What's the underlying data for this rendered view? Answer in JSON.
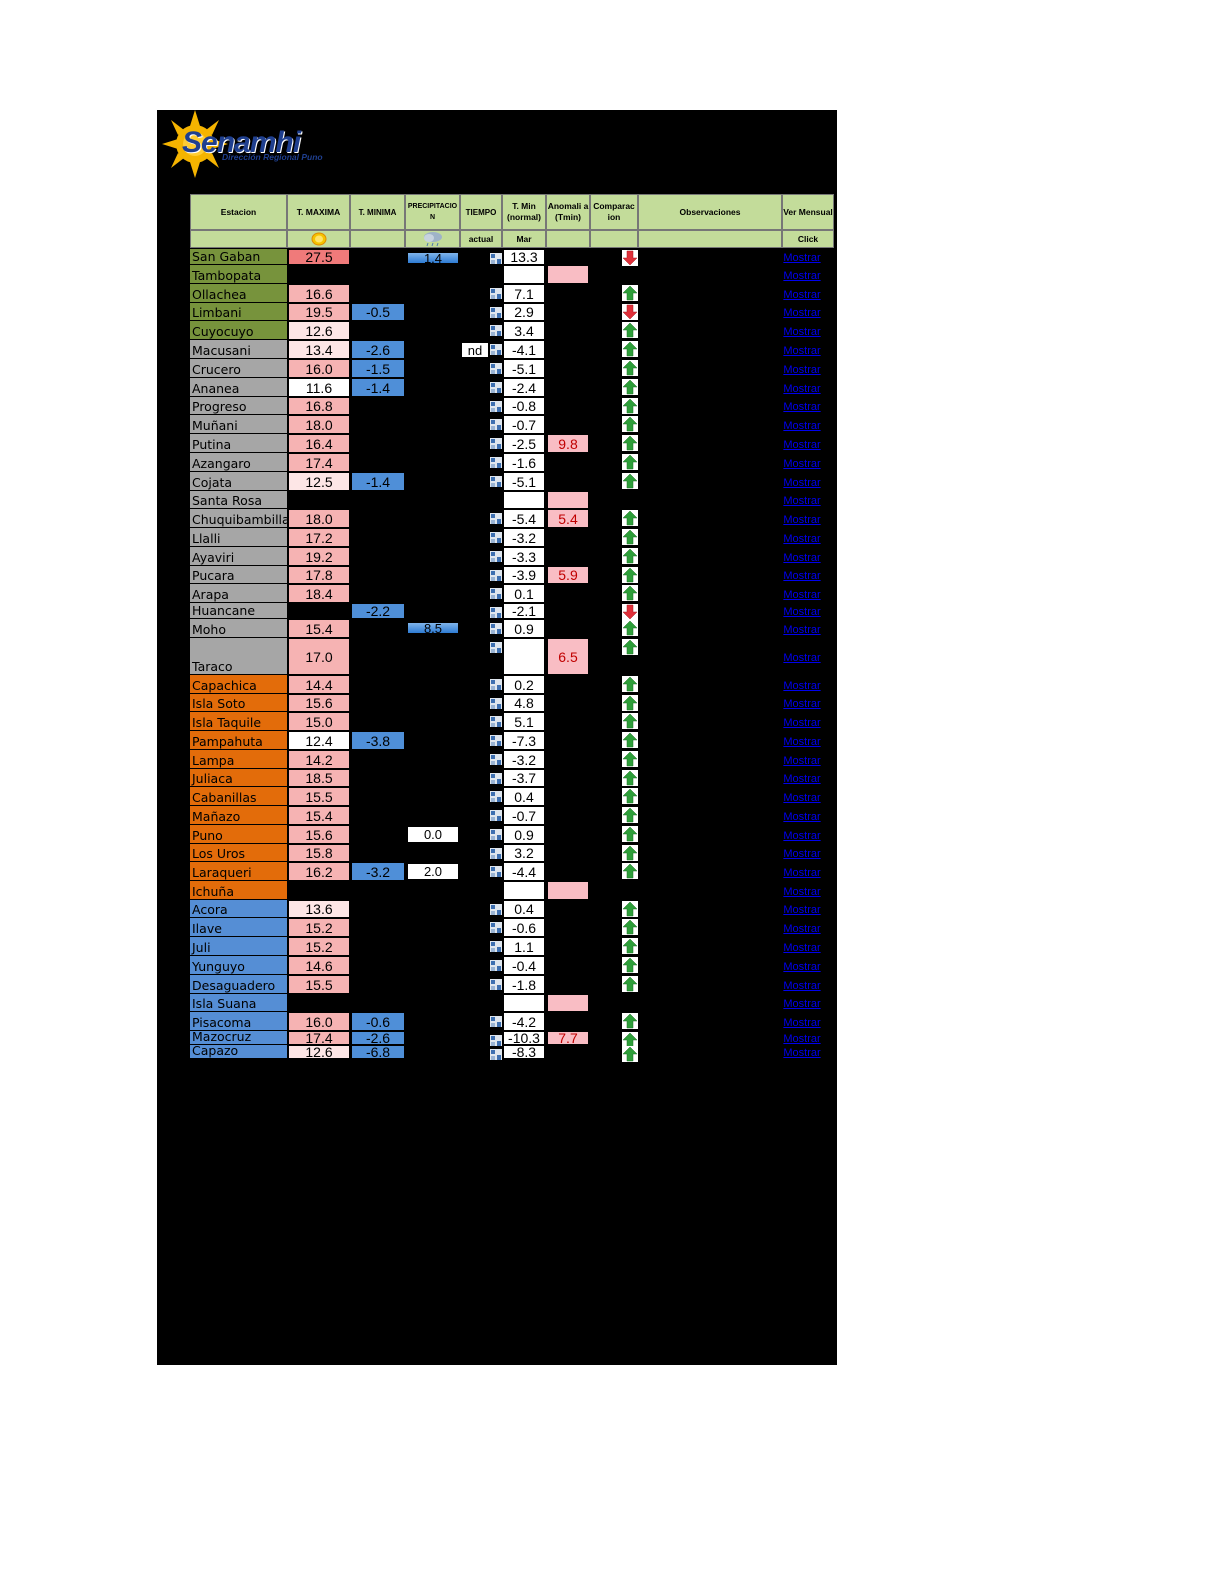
{
  "logo": {
    "name": "Senamhi",
    "subtitle": "Dirección Regional Puno"
  },
  "headers": {
    "station": "Estacion",
    "tmax": "T. MAXIMA",
    "tmin": "T. MINIMA",
    "precip": "PRECIPITACIO N",
    "weather": "TIEMPO",
    "tmin_normal": "T. Min (normal)",
    "anomaly": "Anomali a (Tmin)",
    "comparison": "Comparac ion",
    "observations": "Observaciones",
    "monthly": "Ver Mensual"
  },
  "subheaders": {
    "weather": "actual",
    "tmin_normal": "Mar",
    "monthly": "Click"
  },
  "link_text": "Mostrar",
  "icons": {
    "tmax": "sun-icon",
    "precip": "rain-cloud-icon",
    "weather": "weather-symbol-icon",
    "up": "green-up-arrow-icon",
    "down": "red-down-arrow-icon"
  },
  "colors": {
    "green_region": "#77933c",
    "gray_region": "#a6a6a6",
    "orange_region": "#e36c0a",
    "blue_region": "#558ed5",
    "header_bg": "#c3dc9a"
  },
  "rows": [
    {
      "station": "San Gaban",
      "region": "green",
      "tmax": "27.5",
      "tmin": "",
      "precip": "1.4",
      "weather": "",
      "normal": "13.3",
      "anomaly": "",
      "cmp": "down"
    },
    {
      "station": "Tambopata",
      "region": "green",
      "tmax": "",
      "tmin": "",
      "precip": "",
      "weather": "",
      "normal": "",
      "anomaly": "",
      "cmp": ""
    },
    {
      "station": "Ollachea",
      "region": "green",
      "tmax": "16.6",
      "tmin": "",
      "precip": "",
      "weather": "",
      "normal": "7.1",
      "anomaly": "",
      "cmp": "up"
    },
    {
      "station": "Limbani",
      "region": "green",
      "tmax": "19.5",
      "tmin": "-0.5",
      "precip": "",
      "weather": "",
      "normal": "2.9",
      "anomaly": "",
      "cmp": "down"
    },
    {
      "station": "Cuyocuyo",
      "region": "green",
      "tmax": "12.6",
      "tmin": "",
      "precip": "",
      "weather": "",
      "normal": "3.4",
      "anomaly": "",
      "cmp": "up"
    },
    {
      "station": "Macusani",
      "region": "gray",
      "tmax": "13.4",
      "tmin": "-2.6",
      "precip": "",
      "weather": "nd",
      "normal": "-4.1",
      "anomaly": "",
      "cmp": "up"
    },
    {
      "station": "Crucero",
      "region": "gray",
      "tmax": "16.0",
      "tmin": "-1.5",
      "precip": "",
      "weather": "",
      "normal": "-5.1",
      "anomaly": "",
      "cmp": "up"
    },
    {
      "station": "Ananea",
      "region": "gray",
      "tmax": "11.6",
      "tmin": "-1.4",
      "precip": "",
      "weather": "",
      "normal": "-2.4",
      "anomaly": "",
      "cmp": "up"
    },
    {
      "station": "Progreso",
      "region": "gray",
      "tmax": "16.8",
      "tmin": "",
      "precip": "",
      "weather": "",
      "normal": "-0.8",
      "anomaly": "",
      "cmp": "up"
    },
    {
      "station": "Muñani",
      "region": "gray",
      "tmax": "18.0",
      "tmin": "",
      "precip": "",
      "weather": "",
      "normal": "-0.7",
      "anomaly": "",
      "cmp": "up"
    },
    {
      "station": "Putina",
      "region": "gray",
      "tmax": "16.4",
      "tmin": "",
      "precip": "",
      "weather": "",
      "normal": "-2.5",
      "anomaly": "9.8",
      "cmp": "up"
    },
    {
      "station": "Azangaro",
      "region": "gray",
      "tmax": "17.4",
      "tmin": "",
      "precip": "",
      "weather": "",
      "normal": "-1.6",
      "anomaly": "",
      "cmp": "up"
    },
    {
      "station": "Cojata",
      "region": "gray",
      "tmax": "12.5",
      "tmin": "-1.4",
      "precip": "",
      "weather": "",
      "normal": "-5.1",
      "anomaly": "",
      "cmp": "up"
    },
    {
      "station": "Santa Rosa",
      "region": "gray",
      "tmax": "",
      "tmin": "",
      "precip": "",
      "weather": "",
      "normal": "",
      "anomaly": "",
      "cmp": ""
    },
    {
      "station": "Chuquibambilla",
      "region": "gray",
      "tmax": "18.0",
      "tmin": "",
      "precip": "",
      "weather": "",
      "normal": "-5.4",
      "anomaly": "5.4",
      "cmp": "up"
    },
    {
      "station": "Llalli",
      "region": "gray",
      "tmax": "17.2",
      "tmin": "",
      "precip": "",
      "weather": "",
      "normal": "-3.2",
      "anomaly": "",
      "cmp": "up"
    },
    {
      "station": "Ayaviri",
      "region": "gray",
      "tmax": "19.2",
      "tmin": "",
      "precip": "",
      "weather": "",
      "normal": "-3.3",
      "anomaly": "",
      "cmp": "up"
    },
    {
      "station": "Pucara",
      "region": "gray",
      "tmax": "17.8",
      "tmin": "",
      "precip": "",
      "weather": "",
      "normal": "-3.9",
      "anomaly": "5.9",
      "cmp": "up"
    },
    {
      "station": "Arapa",
      "region": "gray",
      "tmax": "18.4",
      "tmin": "",
      "precip": "",
      "weather": "",
      "normal": "0.1",
      "anomaly": "",
      "cmp": "up"
    },
    {
      "station": "Huancane",
      "region": "gray",
      "tmax": "",
      "tmin": "-2.2",
      "precip": "",
      "weather": "",
      "normal": "-2.1",
      "anomaly": "",
      "cmp": "down"
    },
    {
      "station": "Moho",
      "region": "gray",
      "tmax": "15.4",
      "tmin": "",
      "precip": "8.5",
      "weather": "",
      "normal": "0.9",
      "anomaly": "",
      "cmp": "up"
    },
    {
      "station": "Taraco",
      "region": "gray",
      "tmax": "17.0",
      "tmin": "",
      "precip": "",
      "weather": "",
      "normal": "",
      "anomaly": "6.5",
      "cmp": "up"
    },
    {
      "station": "Capachica",
      "region": "orange",
      "tmax": "14.4",
      "tmin": "",
      "precip": "",
      "weather": "",
      "normal": "0.2",
      "anomaly": "",
      "cmp": "up"
    },
    {
      "station": "Isla Soto",
      "region": "orange",
      "tmax": "15.6",
      "tmin": "",
      "precip": "",
      "weather": "",
      "normal": "4.8",
      "anomaly": "",
      "cmp": "up"
    },
    {
      "station": "Isla Taquile",
      "region": "orange",
      "tmax": "15.0",
      "tmin": "",
      "precip": "",
      "weather": "",
      "normal": "5.1",
      "anomaly": "",
      "cmp": "up"
    },
    {
      "station": "Pampahuta",
      "region": "orange",
      "tmax": "12.4",
      "tmin": "-3.8",
      "precip": "",
      "weather": "",
      "normal": "-7.3",
      "anomaly": "",
      "cmp": "up"
    },
    {
      "station": "Lampa",
      "region": "orange",
      "tmax": "14.2",
      "tmin": "",
      "precip": "",
      "weather": "",
      "normal": "-3.2",
      "anomaly": "",
      "cmp": "up"
    },
    {
      "station": "Juliaca",
      "region": "orange",
      "tmax": "18.5",
      "tmin": "",
      "precip": "",
      "weather": "",
      "normal": "-3.7",
      "anomaly": "",
      "cmp": "up"
    },
    {
      "station": "Cabanillas",
      "region": "orange",
      "tmax": "15.5",
      "tmin": "",
      "precip": "",
      "weather": "",
      "normal": "0.4",
      "anomaly": "",
      "cmp": "up"
    },
    {
      "station": "Mañazo",
      "region": "orange",
      "tmax": "15.4",
      "tmin": "",
      "precip": "",
      "weather": "",
      "normal": "-0.7",
      "anomaly": "",
      "cmp": "up"
    },
    {
      "station": "Puno",
      "region": "orange",
      "tmax": "15.6",
      "tmin": "",
      "precip": "0.0",
      "weather": "",
      "normal": "0.9",
      "anomaly": "",
      "cmp": "up"
    },
    {
      "station": "Los Uros",
      "region": "orange",
      "tmax": "15.8",
      "tmin": "",
      "precip": "",
      "weather": "",
      "normal": "3.2",
      "anomaly": "",
      "cmp": "up"
    },
    {
      "station": "Laraqueri",
      "region": "orange",
      "tmax": "16.2",
      "tmin": "-3.2",
      "precip": "2.0",
      "weather": "",
      "normal": "-4.4",
      "anomaly": "",
      "cmp": "up"
    },
    {
      "station": "Ichuña",
      "region": "orange",
      "tmax": "",
      "tmin": "",
      "precip": "",
      "weather": "",
      "normal": "",
      "anomaly": "",
      "cmp": ""
    },
    {
      "station": "Acora",
      "region": "blue",
      "tmax": "13.6",
      "tmin": "",
      "precip": "",
      "weather": "",
      "normal": "0.4",
      "anomaly": "",
      "cmp": "up"
    },
    {
      "station": "Ilave",
      "region": "blue",
      "tmax": "15.2",
      "tmin": "",
      "precip": "",
      "weather": "",
      "normal": "-0.6",
      "anomaly": "",
      "cmp": "up"
    },
    {
      "station": "Juli",
      "region": "blue",
      "tmax": "15.2",
      "tmin": "",
      "precip": "",
      "weather": "",
      "normal": "1.1",
      "anomaly": "",
      "cmp": "up"
    },
    {
      "station": "Yunguyo",
      "region": "blue",
      "tmax": "14.6",
      "tmin": "",
      "precip": "",
      "weather": "",
      "normal": "-0.4",
      "anomaly": "",
      "cmp": "up"
    },
    {
      "station": "Desaguadero",
      "region": "blue",
      "tmax": "15.5",
      "tmin": "",
      "precip": "",
      "weather": "",
      "normal": "-1.8",
      "anomaly": "",
      "cmp": "up"
    },
    {
      "station": "Isla Suana",
      "region": "blue",
      "tmax": "",
      "tmin": "",
      "precip": "",
      "weather": "",
      "normal": "",
      "anomaly": "",
      "cmp": ""
    },
    {
      "station": "Pisacoma",
      "region": "blue",
      "tmax": "16.0",
      "tmin": "-0.6",
      "precip": "",
      "weather": "",
      "normal": "-4.2",
      "anomaly": "",
      "cmp": "up"
    },
    {
      "station": "Mazocruz",
      "region": "blue",
      "tmax": "17.4",
      "tmin": "-2.6",
      "precip": "",
      "weather": "",
      "normal": "-10.3",
      "anomaly": "7.7",
      "cmp": "up"
    },
    {
      "station": "Capazo",
      "region": "blue",
      "tmax": "12.6",
      "tmin": "-6.8",
      "precip": "",
      "weather": "",
      "normal": "-8.3",
      "anomaly": "",
      "cmp": "up"
    }
  ]
}
